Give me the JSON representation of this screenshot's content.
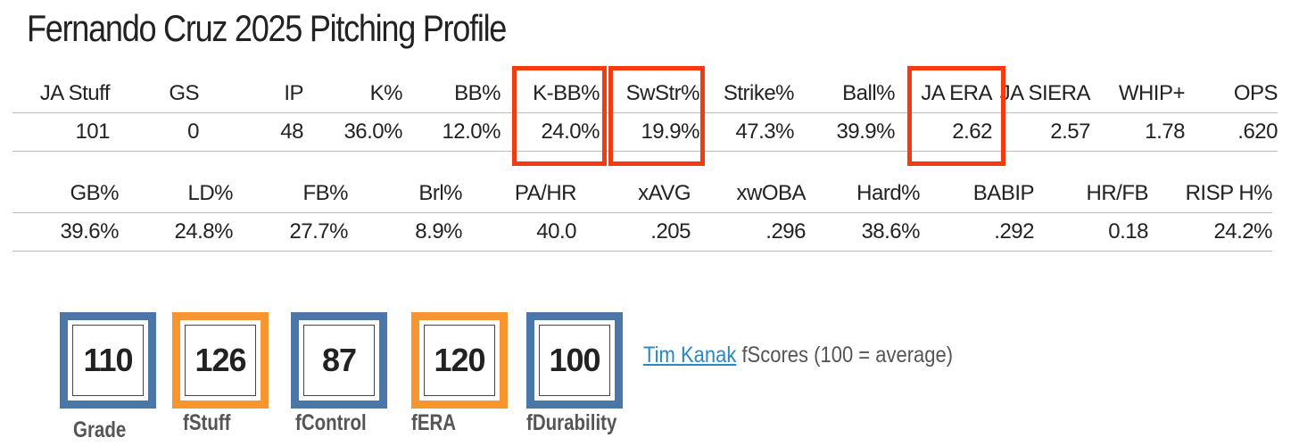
{
  "title": "Fernando Cruz 2025 Pitching Profile",
  "table1": {
    "headers": [
      "JA Stuff",
      "GS",
      "IP",
      "K%",
      "BB%",
      "K-BB%",
      "SwStr%",
      "Strike%",
      "Ball%",
      "JA ERA",
      "JA SIERA",
      "WHIP+",
      "OPS"
    ],
    "values": [
      "101",
      "0",
      "48",
      "36.0%",
      "12.0%",
      "24.0%",
      "19.9%",
      "47.3%",
      "39.9%",
      "2.62",
      "2.57",
      "1.78",
      ".620"
    ],
    "highlighted": [
      "K-BB%",
      "SwStr%",
      "JA ERA"
    ]
  },
  "table2": {
    "headers": [
      "GB%",
      "LD%",
      "FB%",
      "Brl%",
      "PA/HR",
      "xAVG",
      "xwOBA",
      "Hard%",
      "BABIP",
      "HR/FB",
      "RISP H%"
    ],
    "values": [
      "39.6%",
      "24.8%",
      "27.7%",
      "8.9%",
      "40.0",
      ".205",
      ".296",
      "38.6%",
      ".292",
      "0.18",
      "24.2%"
    ]
  },
  "fscores": [
    {
      "label": "Grade",
      "value": "110",
      "color": "#4a76a8"
    },
    {
      "label": "fStuff",
      "value": "126",
      "color": "#f7962f"
    },
    {
      "label": "fControl",
      "value": "87",
      "color": "#4a76a8"
    },
    {
      "label": "fERA",
      "value": "120",
      "color": "#f7962f"
    },
    {
      "label": "fDurability",
      "value": "100",
      "color": "#4a76a8"
    }
  ],
  "legend": {
    "link_text": "Tim Kanak",
    "text": " fScores (100 = average)"
  },
  "colors": {
    "highlight_red": "#f23b0f",
    "box_blue": "#4a76a8",
    "box_orange": "#f7962f",
    "link_blue": "#2a86c4"
  }
}
